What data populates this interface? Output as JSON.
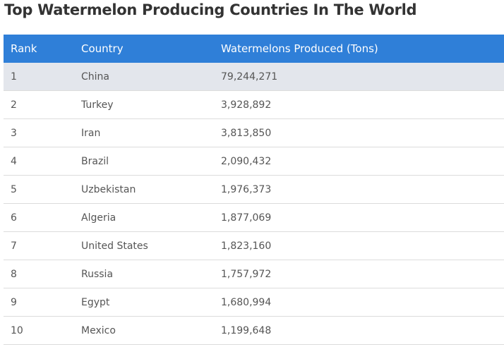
{
  "title": "Top Watermelon Producing Countries In The World",
  "colors": {
    "header": "#2f7fd8",
    "highlight_row": "#e3e6ec"
  },
  "table": {
    "headers": [
      "Rank",
      "Country",
      "Watermelons Produced (Tons)"
    ],
    "rows": [
      [
        "1",
        "China",
        "79,244,271"
      ],
      [
        "2",
        "Turkey",
        "3,928,892"
      ],
      [
        "3",
        "Iran",
        "3,813,850"
      ],
      [
        "4",
        "Brazil",
        "2,090,432"
      ],
      [
        "5",
        "Uzbekistan",
        "1,976,373"
      ],
      [
        "6",
        "Algeria",
        "1,877,069"
      ],
      [
        "7",
        "United States",
        "1,823,160"
      ],
      [
        "8",
        "Russia",
        "1,757,972"
      ],
      [
        "9",
        "Egypt",
        "1,680,994"
      ],
      [
        "10",
        "Mexico",
        "1,199,648"
      ]
    ]
  }
}
